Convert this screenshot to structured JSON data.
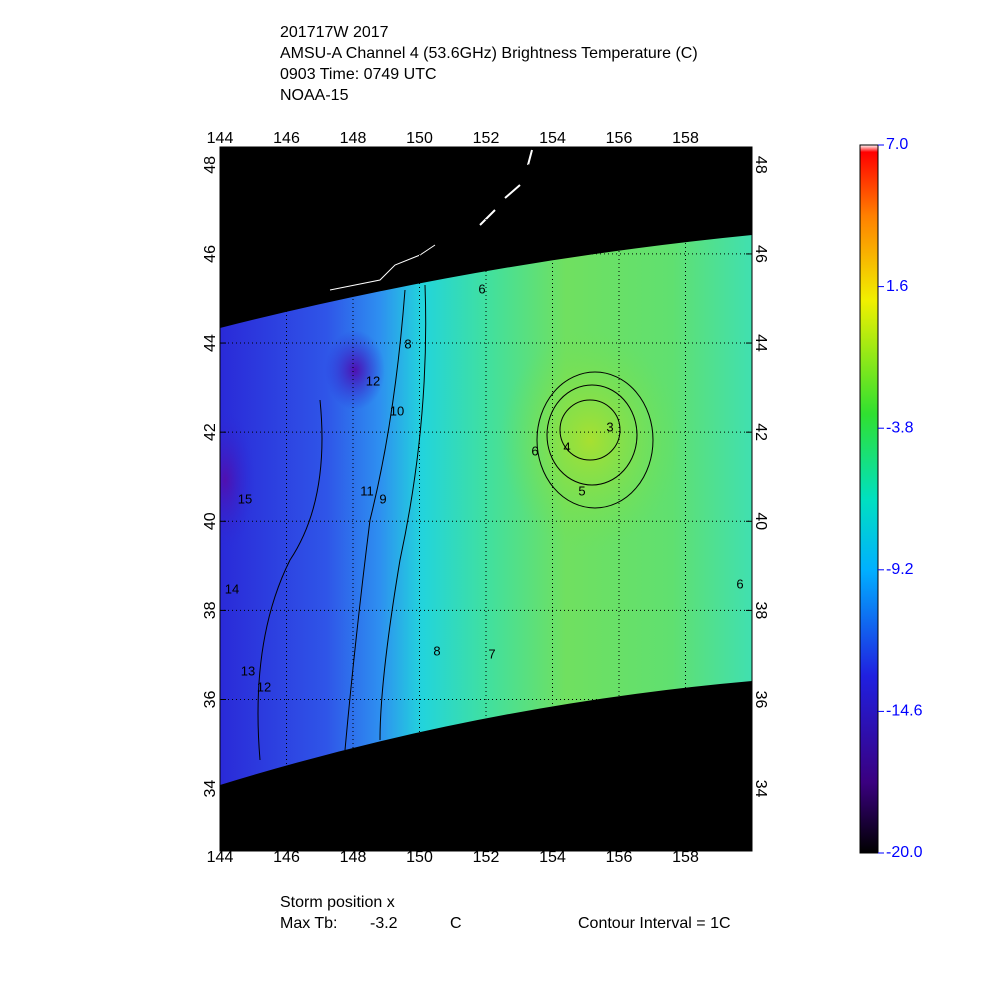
{
  "header": {
    "lines": [
      "201717W 2017",
      "AMSU-A Channel 4 (53.6GHz) Brightness Temperature (C)",
      "0903 Time: 0749 UTC",
      "NOAA-15"
    ]
  },
  "map": {
    "xlim": [
      144,
      160
    ],
    "ylim": [
      32.6,
      48.4
    ],
    "xticks": [
      144,
      146,
      148,
      150,
      152,
      154,
      156,
      158
    ],
    "yticks": [
      34,
      36,
      38,
      40,
      42,
      44,
      46,
      48
    ],
    "grid": true,
    "contour_labels": [
      "6",
      "8",
      "10",
      "12",
      "11",
      "9",
      "15",
      "14",
      "13",
      "12",
      "8",
      "7",
      "6",
      "4",
      "3",
      "5",
      "6"
    ]
  },
  "colorbar": {
    "lim": [
      -20,
      7
    ],
    "ticks": [
      {
        "value": 7,
        "label": "7.0"
      },
      1.6,
      -3.8,
      -9.2,
      -14.6,
      {
        "value": -20,
        "label": "-20.0"
      }
    ]
  },
  "footer": {
    "storm": "Storm position x",
    "max_label": "Max Tb:",
    "max_value": "-3.2",
    "max_unit": "C",
    "interval": "Contour Interval = 1C"
  }
}
